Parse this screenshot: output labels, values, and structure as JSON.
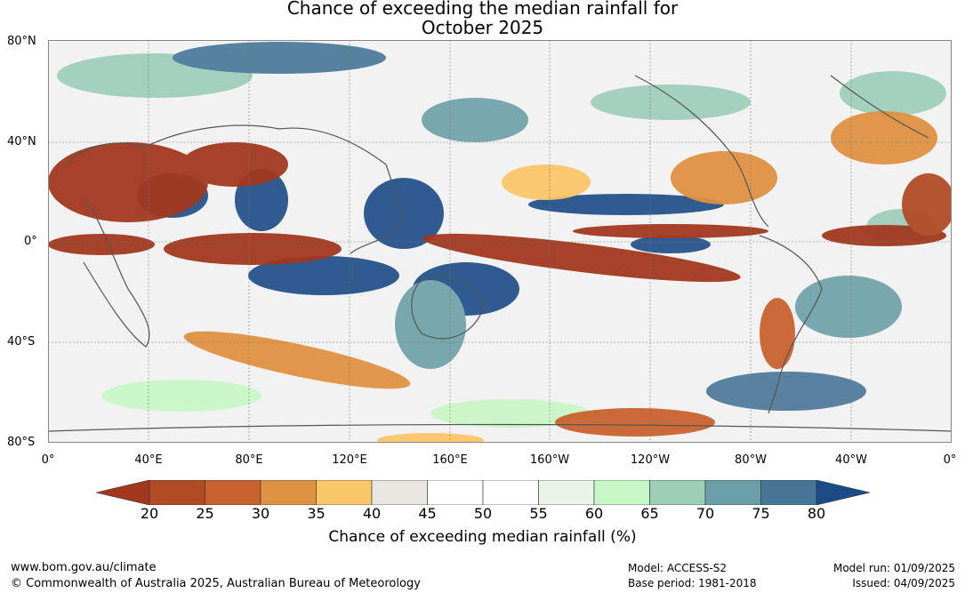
{
  "title": {
    "line1": "Chance of exceeding the median rainfall for",
    "line2": "October 2025"
  },
  "map": {
    "lat_labels": [
      "80°N",
      "40°N",
      "0°",
      "40°S",
      "80°S"
    ],
    "lon_labels": [
      "0°",
      "40°E",
      "80°E",
      "120°E",
      "160°E",
      "160°W",
      "120°W",
      "80°W",
      "40°W",
      "0°"
    ]
  },
  "colorbar": {
    "ticks": [
      "20",
      "25",
      "30",
      "35",
      "40",
      "45",
      "50",
      "55",
      "60",
      "65",
      "70",
      "75",
      "80"
    ],
    "colors": [
      "#a3381f",
      "#b14b26",
      "#c9622e",
      "#df9142",
      "#f9c66a",
      "#e8e7e2",
      "#ffffff",
      "#ffffff",
      "#eaf5ea",
      "#c8f7c6",
      "#9bcdb7",
      "#6b9fa7",
      "#477697",
      "#1b4b86"
    ],
    "label": "Chance of exceeding median rainfall (%)"
  },
  "footer": {
    "website": "www.bom.gov.au/climate",
    "copyright": "© Commonwealth of Australia 2025, Australian Bureau of Meteorology",
    "model": "Model: ACCESS-S2",
    "base_period": "Base period: 1981-2018",
    "model_run": "Model run: 01/09/2025",
    "issued": "Issued: 04/09/2025"
  }
}
